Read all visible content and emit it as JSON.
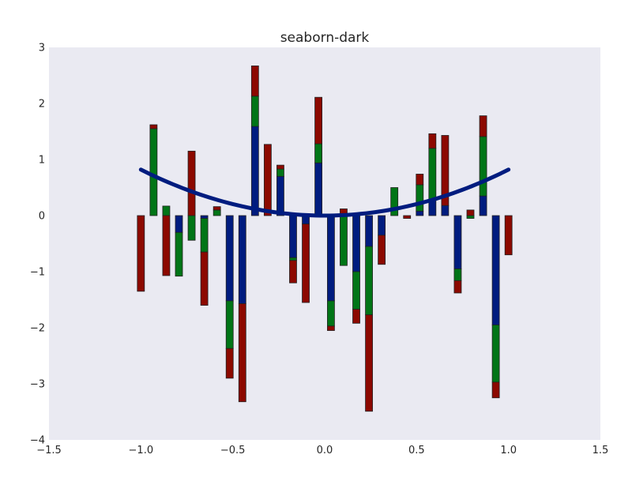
{
  "chart_data": {
    "type": "bar",
    "title": "seaborn-dark",
    "xlabel": "",
    "ylabel": "",
    "xlim": [
      -1.5,
      1.5
    ],
    "ylim": [
      -4,
      3
    ],
    "xticks": [
      -1.5,
      -1.0,
      -0.5,
      0.0,
      0.5,
      1.0,
      1.5
    ],
    "xtick_labels": [
      "−1.5",
      "−1.0",
      "−0.5",
      "0.0",
      "0.5",
      "1.0",
      "1.5"
    ],
    "yticks": [
      -4,
      -3,
      -2,
      -1,
      0,
      1,
      2,
      3
    ],
    "ytick_labels": [
      "−4",
      "−3",
      "−2",
      "−1",
      "0",
      "1",
      "2",
      "3"
    ],
    "grid": false,
    "background": "#EAEAF2",
    "bar_edge": "#222222",
    "x": [
      -1.0,
      -0.931,
      -0.862,
      -0.793,
      -0.724,
      -0.655,
      -0.586,
      -0.517,
      -0.448,
      -0.379,
      -0.31,
      -0.241,
      -0.172,
      -0.103,
      -0.034,
      0.034,
      0.103,
      0.172,
      0.241,
      0.31,
      0.379,
      0.448,
      0.517,
      0.586,
      0.655,
      0.724,
      0.793,
      0.862,
      0.931,
      1.0
    ],
    "series": [
      {
        "color": "#001C7F",
        "values": [
          0,
          0,
          0,
          -0.3,
          0,
          -0.05,
          0,
          -1.52,
          -1.57,
          1.59,
          0,
          0.7,
          -0.75,
          -0.15,
          0.94,
          -1.52,
          0,
          -1.0,
          -0.55,
          -0.35,
          0,
          0,
          0.08,
          0.27,
          0.18,
          -0.95,
          0,
          0.35,
          -1.95,
          0
        ]
      },
      {
        "color": "#017517",
        "values": [
          0,
          1.55,
          0.17,
          -0.78,
          -0.44,
          -0.6,
          0.1,
          -0.85,
          0,
          0.54,
          0,
          0.13,
          -0.05,
          0,
          0.34,
          -0.45,
          -0.89,
          -0.67,
          -1.22,
          0,
          0.5,
          0,
          0.47,
          0.93,
          0,
          -0.21,
          -0.05,
          1.06,
          -1.02,
          0
        ]
      },
      {
        "color": "#8C0900",
        "values": [
          -1.35,
          0.07,
          -1.07,
          0,
          1.15,
          -0.95,
          0.06,
          -0.53,
          -1.75,
          0.54,
          1.27,
          0.07,
          -0.4,
          -1.4,
          0.83,
          -0.08,
          0.12,
          -0.25,
          -1.72,
          -0.52,
          0,
          -0.05,
          0.19,
          0.26,
          1.25,
          -0.22,
          0.1,
          0.37,
          -0.28,
          -0.7
        ]
      }
    ],
    "line": {
      "color": "#001C7F",
      "y_formula": "0.82 * x^2",
      "x_range": [
        -1.0,
        1.0
      ]
    }
  }
}
